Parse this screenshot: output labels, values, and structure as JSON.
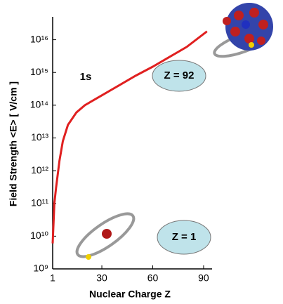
{
  "chart_data": {
    "type": "line",
    "x_label": "Nuclear Charge Z",
    "y_label": "Field Strength <E>  [ V/cm ]",
    "log_y": true,
    "xlim": [
      1,
      95
    ],
    "xticks": [
      1,
      30,
      60,
      90
    ],
    "ylim": [
      1000000000.0,
      5e+16
    ],
    "yticks": [
      {
        "value": 1000000000.0,
        "label": "10⁹"
      },
      {
        "value": 10000000000.0,
        "label": "10¹⁰"
      },
      {
        "value": 100000000000.0,
        "label": "10¹¹"
      },
      {
        "value": 1000000000000.0,
        "label": "10¹²"
      },
      {
        "value": 10000000000000.0,
        "label": "10¹³"
      },
      {
        "value": 100000000000000.0,
        "label": "10¹⁴"
      },
      {
        "value": 1000000000000000.0,
        "label": "10¹⁵"
      },
      {
        "value": 1e+16,
        "label": "10¹⁶"
      }
    ],
    "x": [
      1,
      2,
      3,
      5,
      7,
      10,
      15,
      20,
      30,
      40,
      50,
      60,
      70,
      80,
      92
    ],
    "series": [
      {
        "name": "1s",
        "color": "#e02020",
        "values": [
          6000000000.0,
          100000000000.0,
          300000000000.0,
          2000000000000.0,
          8000000000000.0,
          25000000000000.0,
          60000000000000.0,
          100000000000000.0,
          200000000000000.0,
          400000000000000.0,
          800000000000000.0,
          1500000000000000.0,
          3000000000000000.0,
          6000000000000000.0,
          1.8e+16
        ]
      }
    ],
    "annotations": [
      "Z = 92",
      "Z = 1"
    ]
  }
}
